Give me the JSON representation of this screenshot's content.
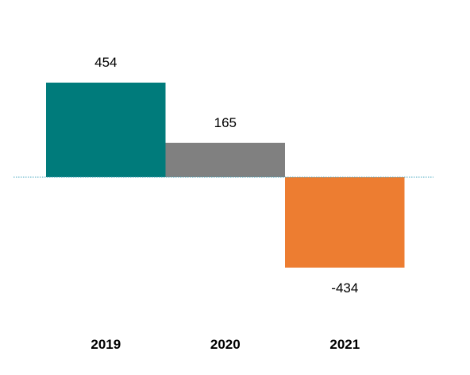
{
  "chart_data": {
    "type": "bar",
    "categories": [
      "2019",
      "2020",
      "2021"
    ],
    "values": [
      454,
      165,
      -434
    ],
    "value_labels": [
      "454",
      "165",
      "-434"
    ],
    "colors": [
      "#007b7b",
      "#808080",
      "#ed7d31"
    ],
    "zero_line_color": "#4aa8c0",
    "title": "",
    "xlabel": "",
    "ylabel": "",
    "grid": false,
    "legend": "none"
  }
}
